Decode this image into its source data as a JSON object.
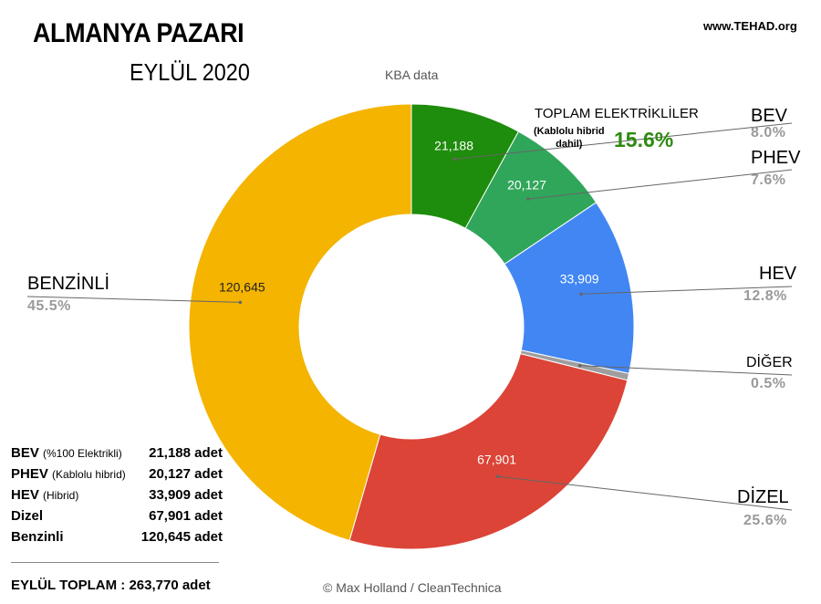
{
  "header": {
    "title": "ALMANYA PAZARI",
    "subtitle": "EYLÜL 2020",
    "source_note": "KBA data",
    "website": "www.TEHAD.org"
  },
  "chart_data": {
    "type": "pie",
    "donut": true,
    "slices": [
      {
        "name": "BEV",
        "value": 21188,
        "label": "21,188",
        "percent": "8.0%",
        "color": "#1e8c0c"
      },
      {
        "name": "PHEV",
        "value": 20127,
        "label": "20,127",
        "percent": "7.6%",
        "color": "#30a65a"
      },
      {
        "name": "HEV",
        "value": 33909,
        "label": "33,909",
        "percent": "12.8%",
        "color": "#4286f4"
      },
      {
        "name": "DİĞER",
        "value": 1320,
        "label": "",
        "percent": "0.5%",
        "color": "#9e9e9e"
      },
      {
        "name": "DİZEL",
        "value": 67901,
        "label": "67,901",
        "percent": "25.6%",
        "color": "#db4437"
      },
      {
        "name": "BENZİNLİ",
        "value": 120645,
        "label": "120,645",
        "percent": "45.5%",
        "color": "#f4b400"
      }
    ]
  },
  "callout": {
    "title": "TOPLAM ELEKTRİKLİLER",
    "note_line1": "(Kablolu hibrid",
    "note_line2": "dahil)",
    "value": "15.6%"
  },
  "table": {
    "rows": [
      {
        "label": "BEV",
        "note": "(%100 Elektrikli)",
        "value": "21,188 adet"
      },
      {
        "label": "PHEV",
        "note": "(Kablolu hibrid)",
        "value": "20,127 adet"
      },
      {
        "label": "HEV",
        "note": "(Hibrid)",
        "value": "33,909 adet"
      },
      {
        "label": "Dizel",
        "note": "",
        "value": "67,901 adet"
      },
      {
        "label": "Benzinli",
        "note": "",
        "value": "120,645 adet"
      }
    ],
    "total": "EYLÜL TOPLAM :  263,770 adet"
  },
  "credit": "© Max Holland / CleanTechnica"
}
